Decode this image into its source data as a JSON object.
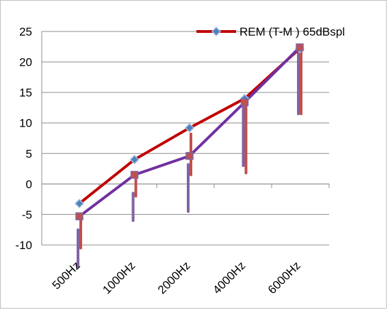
{
  "chart_data": {
    "type": "line",
    "categories": [
      "500Hz",
      "1000Hz",
      "2000Hz",
      "4000Hz",
      "6000Hz"
    ],
    "ylim": [
      -10,
      25
    ],
    "yticks": [
      25,
      20,
      15,
      10,
      5,
      0,
      -5,
      -10
    ],
    "grid": true,
    "legend_position": "top-right",
    "series": [
      {
        "name": "REM (T-M )  65dBspl",
        "color": "#c00000",
        "marker": "diamond",
        "values": [
          -3.2,
          4.0,
          9.2,
          14.0,
          22.2
        ],
        "error_low": [
          -10.5,
          -2.0,
          1.5,
          1.8,
          11.5
        ],
        "error_high": [
          -5.0,
          1.5,
          8.2,
          14.0,
          22.5
        ]
      },
      {
        "color": "#7030a0",
        "marker": "square",
        "values": [
          -5.3,
          1.5,
          4.6,
          13.4,
          22.4
        ],
        "error_low": [
          -13.5,
          -6.0,
          -4.5,
          3.0,
          11.5
        ],
        "error_high": [
          -7.5,
          -1.5,
          3.2,
          14.0,
          22.4
        ]
      }
    ]
  }
}
